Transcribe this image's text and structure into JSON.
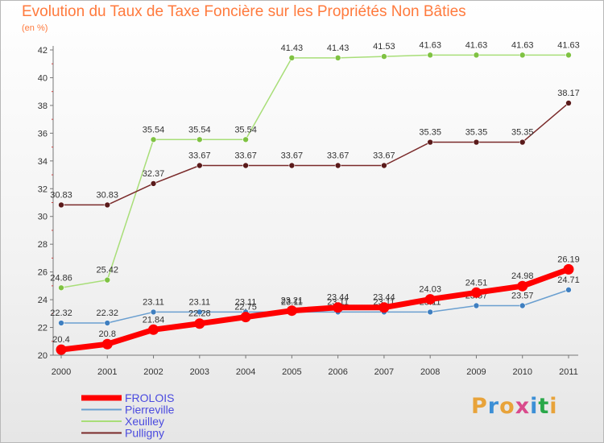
{
  "header": {
    "title": "Evolution du Taux de Taxe Foncière sur les Propriétés Non Bâties",
    "unit": "(en %)"
  },
  "brand": {
    "text": "Proxiti",
    "colors": [
      "#e8a33a",
      "#3c8fd6",
      "#e8a33a",
      "#d94a8c",
      "#3c8fd6",
      "#2aa84a",
      "#e8a33a"
    ]
  },
  "chart_data": {
    "type": "line",
    "title": "Evolution du Taux de Taxe Foncière sur les Propriétés Non Bâties",
    "ylabel": "(en %)",
    "xlabel": "",
    "x": [
      "2000",
      "2001",
      "2002",
      "2003",
      "2004",
      "2005",
      "2006",
      "2007",
      "2008",
      "2009",
      "2010",
      "2011"
    ],
    "ylim": [
      20,
      42
    ],
    "yticks": [
      20,
      22,
      24,
      26,
      28,
      30,
      32,
      34,
      36,
      38,
      40,
      42
    ],
    "grid": false,
    "legend_position": "bottom-left",
    "series": [
      {
        "name": "FROLOIS",
        "color": "#ff0000",
        "emphasis": true,
        "values": [
          20.4,
          20.8,
          21.84,
          22.28,
          22.75,
          23.21,
          23.44,
          23.44,
          24.03,
          24.51,
          24.98,
          26.19
        ],
        "labels": [
          "20.4",
          "20.8",
          "21.84",
          "22.28",
          "22.75",
          "23.21",
          "23.44",
          "23.44",
          "24.03",
          "24.51",
          "24.98",
          "26.19"
        ]
      },
      {
        "name": "Pierreville",
        "color": "#6a9fd0",
        "marker": "#3f7fc0",
        "values": [
          22.32,
          22.32,
          23.11,
          23.11,
          23.11,
          23.11,
          23.11,
          23.11,
          23.11,
          23.57,
          23.57,
          24.71
        ],
        "labels": [
          "22.32",
          "22.32",
          "23.11",
          "23.11",
          "23.11",
          "23.11",
          "23.11",
          "23.11",
          "23.11",
          "23.57",
          "23.57",
          "24.71"
        ]
      },
      {
        "name": "Xeuilley",
        "color": "#a8de78",
        "marker": "#7fc242",
        "values": [
          24.86,
          25.42,
          35.54,
          35.54,
          35.54,
          41.43,
          41.43,
          41.53,
          41.63,
          41.63,
          41.63,
          41.63
        ],
        "labels": [
          "24.86",
          "25.42",
          "35.54",
          "35.54",
          "35.54",
          "41.43",
          "41.43",
          "41.53",
          "41.63",
          "41.63",
          "41.63",
          "41.63"
        ]
      },
      {
        "name": "Pulligny",
        "color": "#7a2a2a",
        "marker": "#5a1a1a",
        "values": [
          30.83,
          30.83,
          32.37,
          33.67,
          33.67,
          33.67,
          33.67,
          33.67,
          35.35,
          35.35,
          35.35,
          38.17
        ],
        "labels": [
          "30.83",
          "30.83",
          "32.37",
          "33.67",
          "33.67",
          "33.67",
          "33.67",
          "33.67",
          "35.35",
          "35.35",
          "35.35",
          "38.17"
        ]
      }
    ]
  }
}
